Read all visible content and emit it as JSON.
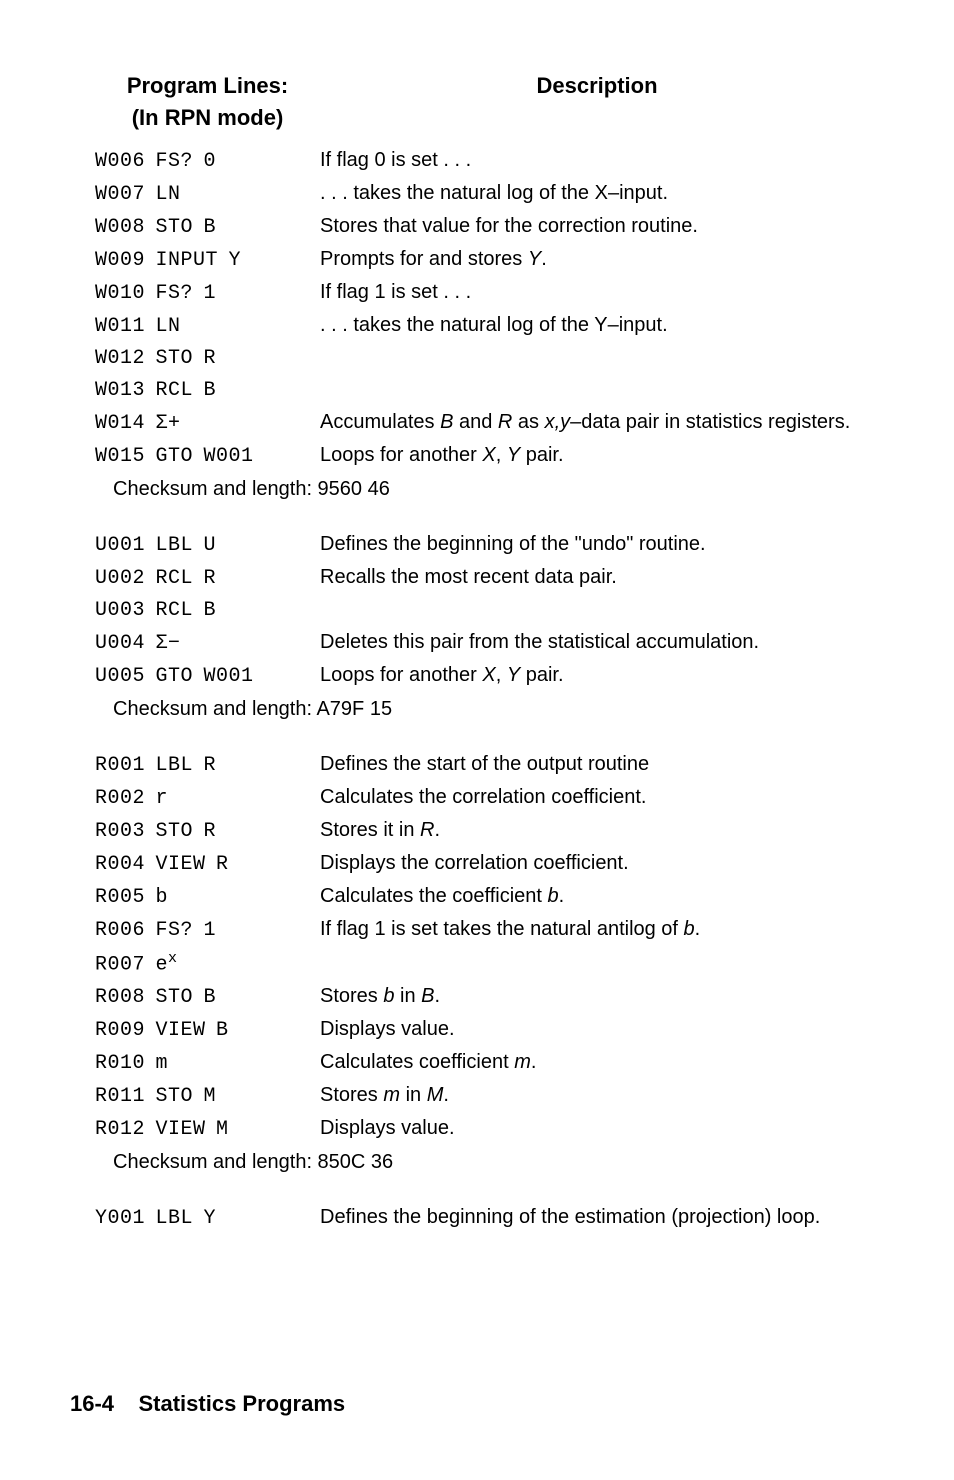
{
  "header": {
    "left_line1": "Program Lines:",
    "left_line2": "(In RPN mode)",
    "right": "Description"
  },
  "blocks": [
    {
      "rows": [
        {
          "prog": "W006 FS? 0",
          "desc": "If flag 0 is set . . ."
        },
        {
          "prog": "W007 LN",
          "desc": ". . . takes the natural log of the X–input."
        },
        {
          "prog": "W008 STO B",
          "desc": "Stores that value for the correction routine."
        },
        {
          "prog": "W009 INPUT Y",
          "desc_html": "Prompts for and stores <span class=\"italic\">Y</span>."
        },
        {
          "prog": "W010 FS? 1",
          "desc": "If flag 1 is set . . ."
        },
        {
          "prog": "W011 LN",
          "desc": ". . . takes the natural log of the Y–input."
        },
        {
          "prog": "W012 STO R",
          "desc": ""
        },
        {
          "prog": "W013 RCL B",
          "desc": ""
        },
        {
          "prog": "W014 Σ+",
          "desc_html": "Accumulates <span class=\"italic\">B</span> and <span class=\"italic\">R</span> as <span class=\"italic\">x,y</span>–data pair in statistics registers."
        },
        {
          "prog": "W015 GTO W001",
          "desc_html": "Loops for another <span class=\"italic\">X</span>, <span class=\"italic\">Y</span> pair."
        }
      ],
      "checksum": "Checksum and length: 9560 46"
    },
    {
      "rows": [
        {
          "prog": "U001 LBL U",
          "desc": "Defines the beginning of the \"undo\" routine."
        },
        {
          "prog": "U002 RCL R",
          "desc": "Recalls the most recent data pair."
        },
        {
          "prog": "U003 RCL B",
          "desc": ""
        },
        {
          "prog": "U004 Σ−",
          "desc": "Deletes this pair from the statistical accumulation."
        },
        {
          "prog": "U005 GTO W001",
          "desc_html": "Loops for another <span class=\"italic\">X</span>, <span class=\"italic\">Y</span> pair."
        }
      ],
      "checksum": "Checksum and length: A79F 15"
    },
    {
      "rows": [
        {
          "prog": "R001 LBL R",
          "desc": "Defines the start of the output routine"
        },
        {
          "prog": "R002 r",
          "desc": "Calculates the correlation coefficient."
        },
        {
          "prog": "R003 STO R",
          "desc_html": "Stores it in <span class=\"italic\">R</span>."
        },
        {
          "prog": "R004 VIEW R",
          "desc": "Displays the correlation coefficient."
        },
        {
          "prog": "R005 b",
          "desc_html": "Calculates the coefficient <span class=\"italic\">b</span>."
        },
        {
          "prog": "R006 FS? 1",
          "desc_html": "If flag 1 is set takes the natural antilog of <span class=\"italic\">b</span>."
        },
        {
          "prog_html": "R007 e<sup class=\"ex\">x</sup>",
          "desc": ""
        },
        {
          "prog": "R008 STO B",
          "desc_html": "Stores <span class=\"italic\">b</span> in <span class=\"italic\">B</span>."
        },
        {
          "prog": "R009 VIEW B",
          "desc": "Displays value."
        },
        {
          "prog": "R010 m",
          "desc_html": "Calculates coefficient <span class=\"italic\">m</span>."
        },
        {
          "prog": "R011 STO M",
          "desc_html": "Stores <span class=\"italic\">m</span> in <span class=\"italic\">M</span>."
        },
        {
          "prog": "R012 VIEW M",
          "desc": "Displays value."
        }
      ],
      "checksum": "Checksum and length: 850C 36"
    },
    {
      "rows": [
        {
          "prog": "Y001 LBL Y",
          "desc": "Defines the beginning of the estimation (projection) loop."
        }
      ]
    }
  ],
  "footer": {
    "page": "16-4",
    "title": "Statistics Programs"
  }
}
